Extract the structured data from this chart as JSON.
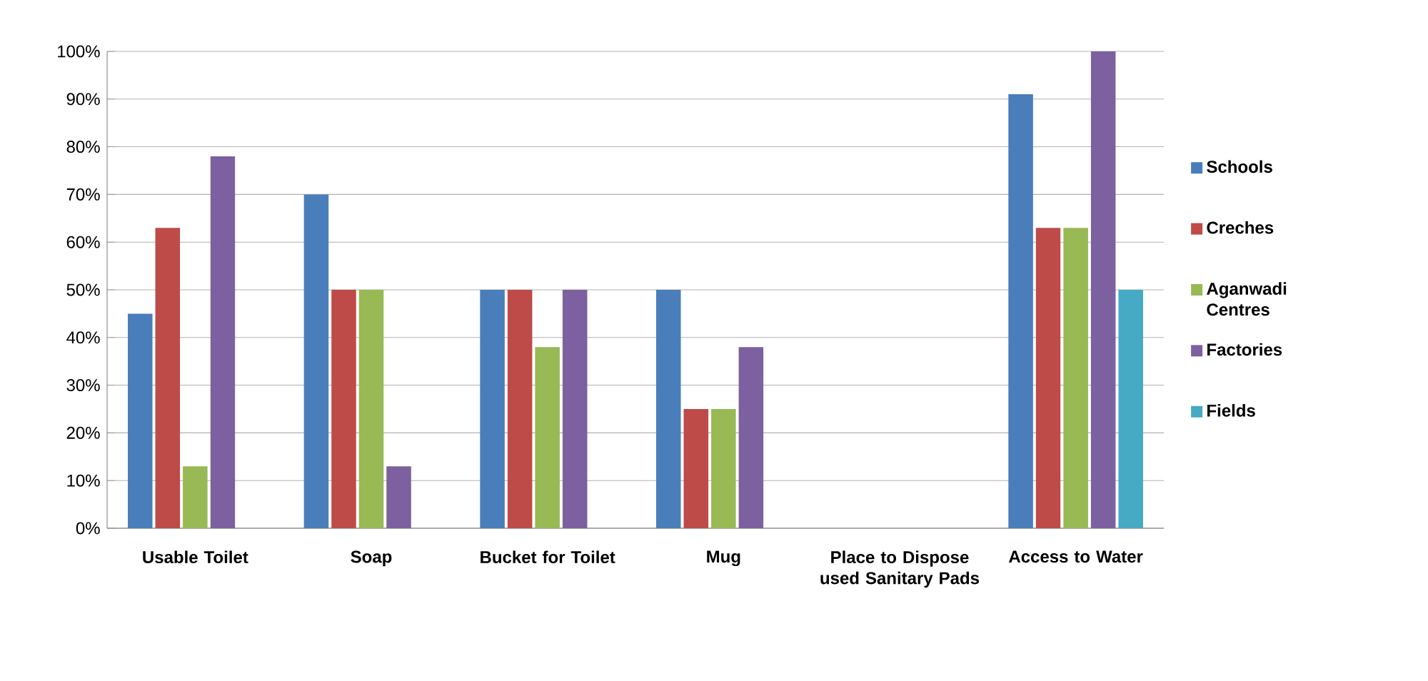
{
  "chart_data": {
    "type": "bar",
    "categories": [
      "Usable Toilet",
      "Soap",
      "Bucket for Toilet",
      "Mug",
      "Place to Dispose used Sanitary Pads",
      "Access to Water"
    ],
    "series": [
      {
        "name": "Schools",
        "color": "#4a7ebb",
        "values": [
          45,
          70,
          50,
          50,
          0,
          91
        ]
      },
      {
        "name": "Creches",
        "color": "#be4b48",
        "values": [
          63,
          50,
          50,
          25,
          0,
          63
        ]
      },
      {
        "name": "Aganwadi Centres",
        "color": "#98b954",
        "values": [
          13,
          50,
          38,
          25,
          0,
          63
        ]
      },
      {
        "name": "Factories",
        "color": "#7d60a0",
        "values": [
          78,
          13,
          50,
          38,
          0,
          100
        ]
      },
      {
        "name": "Fields",
        "color": "#46aac5",
        "values": [
          0,
          0,
          0,
          0,
          0,
          50
        ]
      }
    ],
    "ylim": [
      0,
      100
    ],
    "yticks": [
      {
        "value": 0,
        "label": "0%"
      },
      {
        "value": 10,
        "label": "10%"
      },
      {
        "value": 20,
        "label": "20%"
      },
      {
        "value": 30,
        "label": "30%"
      },
      {
        "value": 40,
        "label": "40%"
      },
      {
        "value": 50,
        "label": "50%"
      },
      {
        "value": 60,
        "label": "60%"
      },
      {
        "value": 70,
        "label": "70%"
      },
      {
        "value": 80,
        "label": "80%"
      },
      {
        "value": 90,
        "label": "90%"
      },
      {
        "value": 100,
        "label": "100%"
      }
    ],
    "grid": "y",
    "legend": "right"
  }
}
